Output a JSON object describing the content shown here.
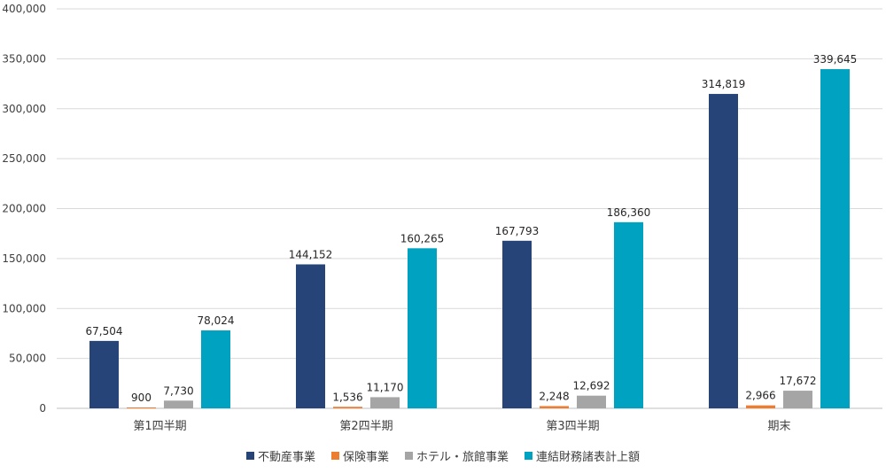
{
  "chart_data": {
    "type": "bar",
    "categories": [
      "第1四半期",
      "第2四半期",
      "第3四半期",
      "期末"
    ],
    "series": [
      {
        "name": "不動産事業",
        "color": "#264478",
        "values": [
          67504,
          144152,
          167793,
          314819
        ]
      },
      {
        "name": "保険事業",
        "color": "#ED7D31",
        "values": [
          900,
          1536,
          2248,
          2966
        ]
      },
      {
        "name": "ホテル・旅館事業",
        "color": "#A5A5A5",
        "values": [
          7730,
          11170,
          12692,
          17672
        ]
      },
      {
        "name": "連結財務諸表計上額",
        "color": "#00A2C1",
        "values": [
          78024,
          160265,
          186360,
          339645
        ]
      }
    ],
    "ylim": [
      0,
      400000
    ],
    "y_ticks": [
      0,
      50000,
      100000,
      150000,
      200000,
      250000,
      300000,
      350000,
      400000
    ],
    "y_tick_labels": [
      "0",
      "50,000",
      "100,000",
      "150,000",
      "200,000",
      "250,000",
      "300,000",
      "350,000",
      "400,000"
    ],
    "data_labels": [
      [
        "67,504",
        "144,152",
        "167,793",
        "314,819"
      ],
      [
        "900",
        "1,536",
        "2,248",
        "2,966"
      ],
      [
        "7,730",
        "11,170",
        "12,692",
        "17,672"
      ],
      [
        "78,024",
        "160,265",
        "186,360",
        "339,645"
      ]
    ],
    "grid": true,
    "legend_position": "bottom"
  }
}
